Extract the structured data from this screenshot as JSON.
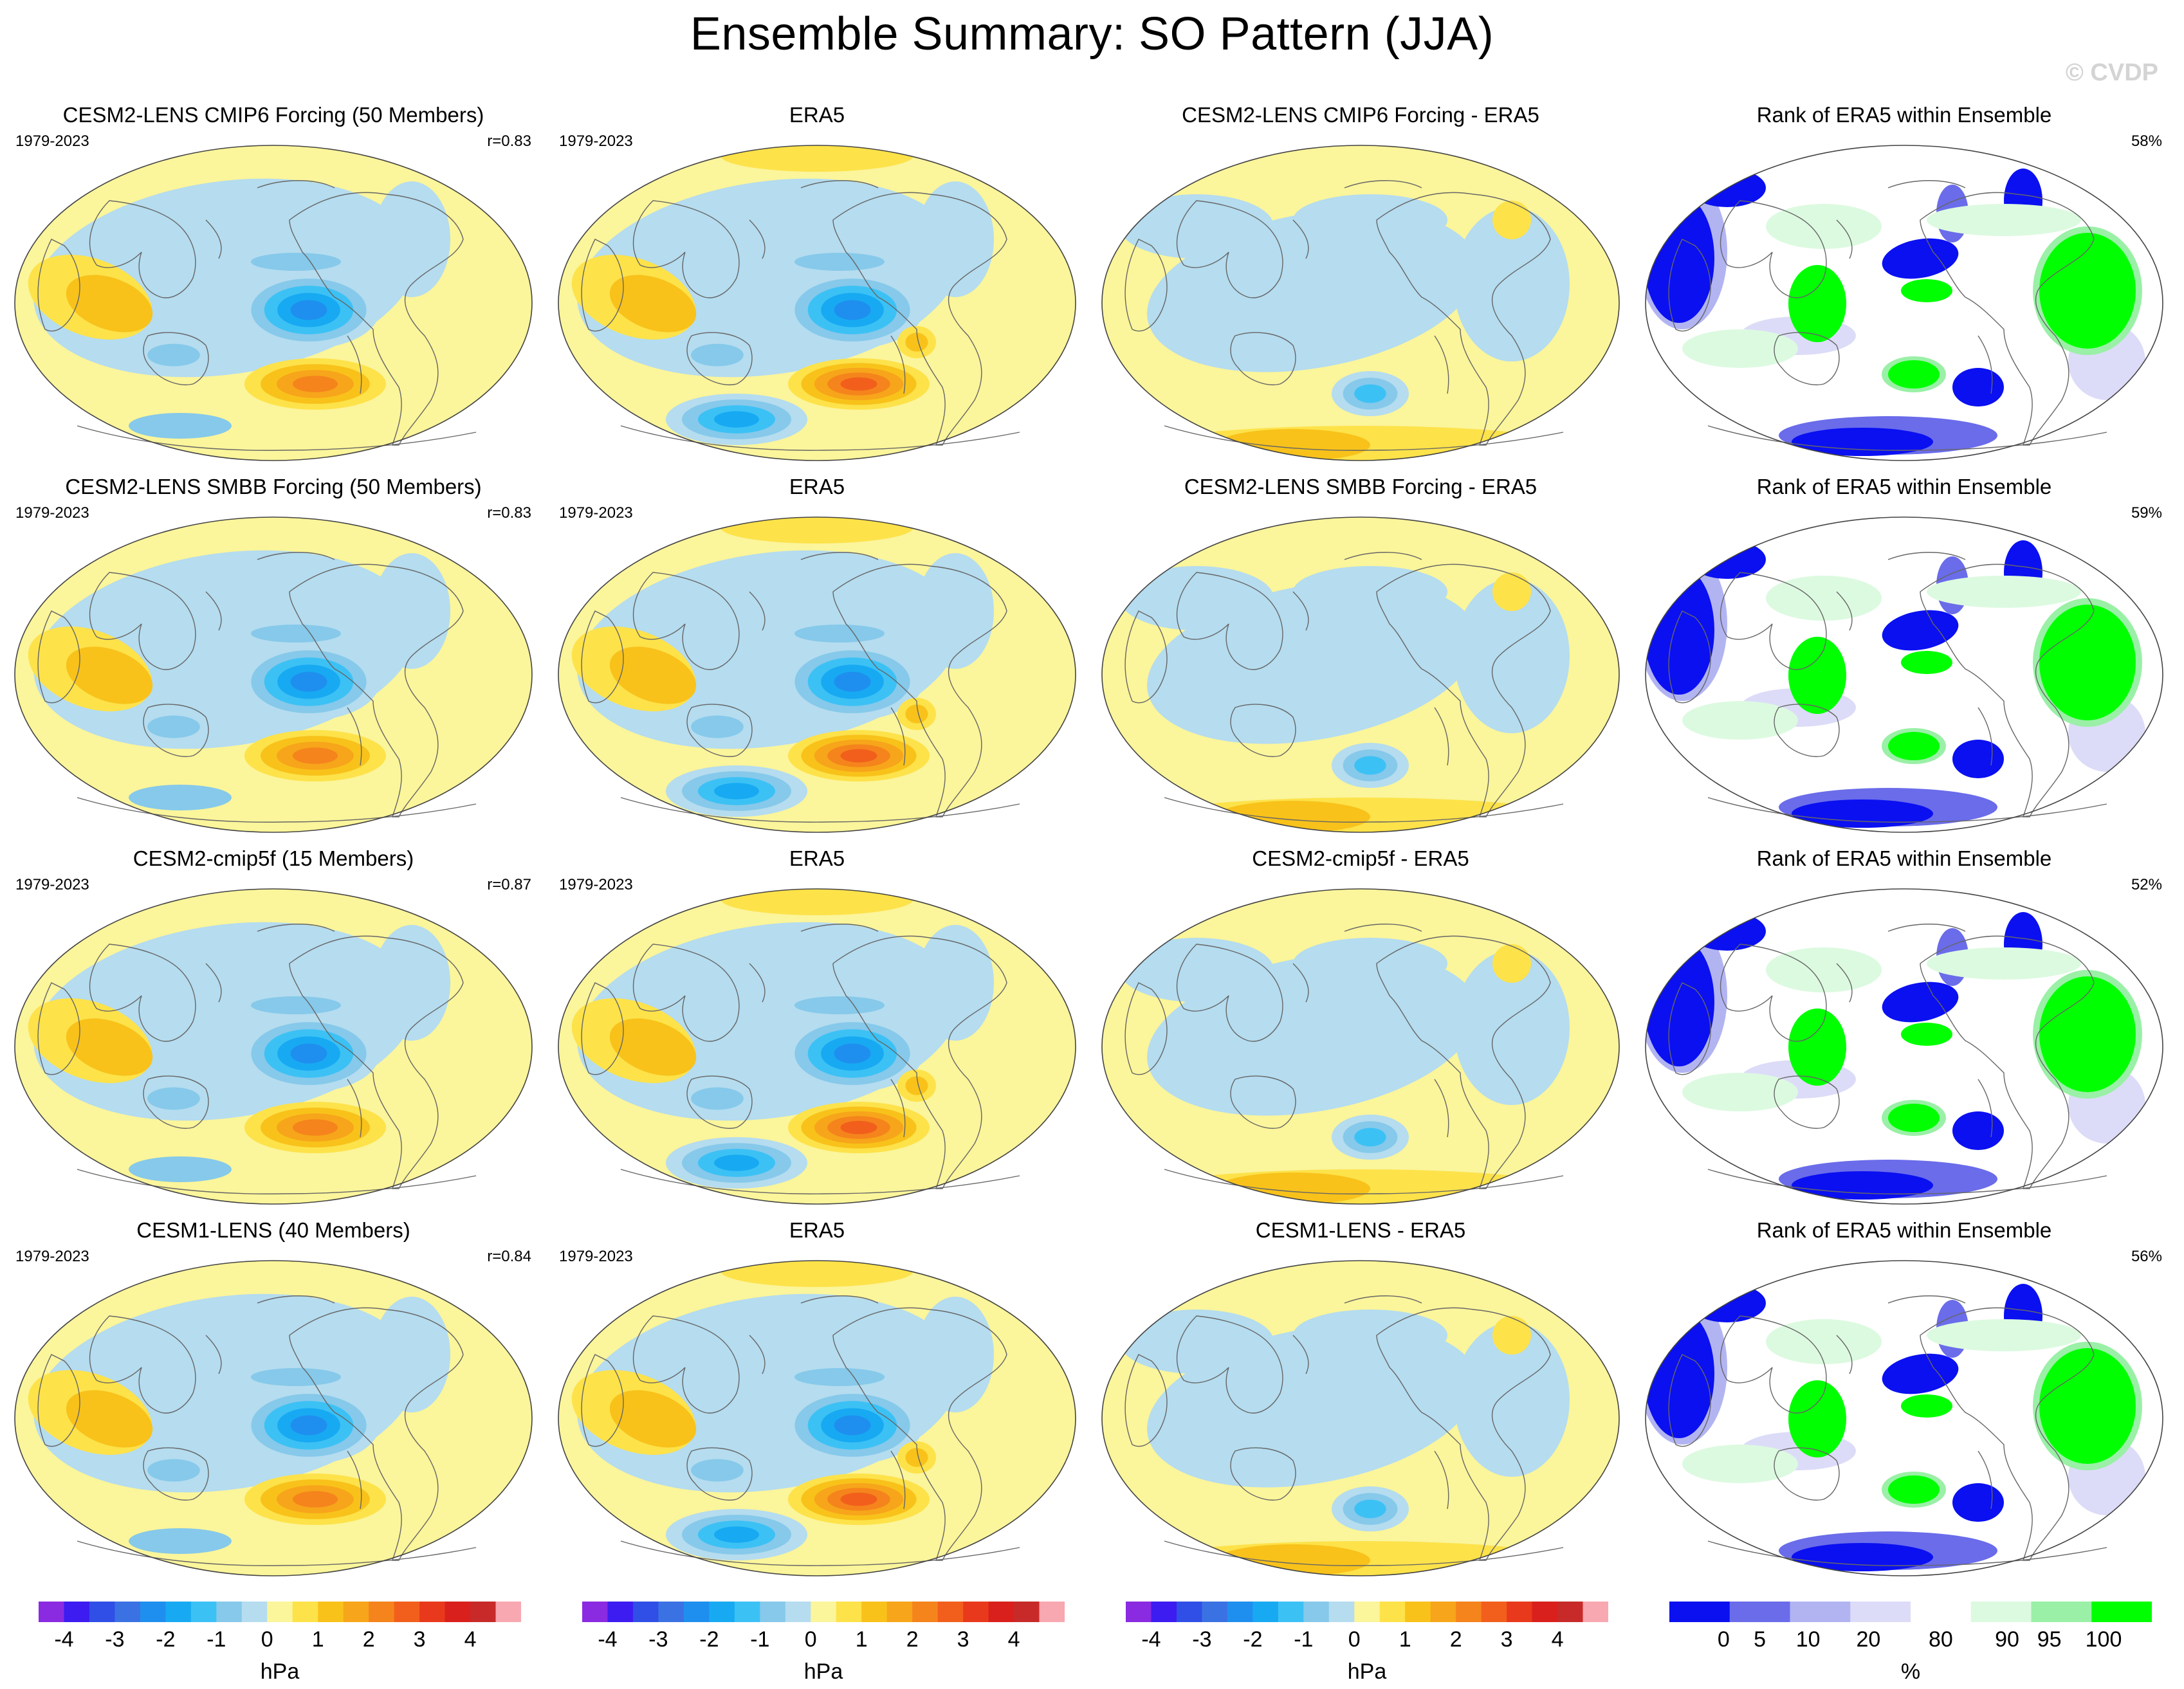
{
  "title": "Ensemble Summary: SO Pattern (JJA)",
  "watermark": "© CVDP",
  "rows": [
    {
      "ens": {
        "title": "CESM2-LENS CMIP6 Forcing (50 Members)",
        "years": "1979-2023",
        "corr": "r=0.83"
      },
      "obs": {
        "title": "ERA5",
        "years": "1979-2023"
      },
      "diff": {
        "title": "CESM2-LENS CMIP6 Forcing - ERA5"
      },
      "rank": {
        "title": "Rank of ERA5 within Ensemble",
        "pct": "58%"
      }
    },
    {
      "ens": {
        "title": "CESM2-LENS SMBB Forcing (50 Members)",
        "years": "1979-2023",
        "corr": "r=0.83"
      },
      "obs": {
        "title": "ERA5",
        "years": "1979-2023"
      },
      "diff": {
        "title": "CESM2-LENS SMBB Forcing - ERA5"
      },
      "rank": {
        "title": "Rank of ERA5 within Ensemble",
        "pct": "59%"
      }
    },
    {
      "ens": {
        "title": "CESM2-cmip5f (15 Members)",
        "years": "1979-2023",
        "corr": "r=0.87"
      },
      "obs": {
        "title": "ERA5",
        "years": "1979-2023"
      },
      "diff": {
        "title": "CESM2-cmip5f - ERA5"
      },
      "rank": {
        "title": "Rank of ERA5 within Ensemble",
        "pct": "52%"
      }
    },
    {
      "ens": {
        "title": "CESM1-LENS (40 Members)",
        "years": "1979-2023",
        "corr": "r=0.84"
      },
      "obs": {
        "title": "ERA5",
        "years": "1979-2023"
      },
      "diff": {
        "title": "CESM1-LENS - ERA5"
      },
      "rank": {
        "title": "Rank of ERA5 within Ensemble",
        "pct": "56%"
      }
    }
  ],
  "chart_data": {
    "type": "heatmap",
    "title": "Ensemble Summary: SO Pattern (JJA)",
    "projection": "global map (Robinson-like), Pacific-centered",
    "pattern_colorbar": {
      "unit": "hPa",
      "tick_labels": [
        "-4",
        "-3",
        "-2",
        "-1",
        "0",
        "1",
        "2",
        "3",
        "4"
      ],
      "levels": [
        -4.5,
        -4,
        -3.5,
        -3,
        -2.5,
        -2,
        -1.5,
        -1,
        -0.5,
        0,
        0.5,
        1,
        1.5,
        2,
        2.5,
        3,
        3.5,
        4,
        4.5
      ],
      "colors": [
        "#8a2be2",
        "#3c1cf0",
        "#2f4fe6",
        "#3b72e3",
        "#1f8fef",
        "#17aaf2",
        "#3cc1f5",
        "#86c9ea",
        "#b5dcef",
        "#fbf59b",
        "#fde24a",
        "#f8c21a",
        "#f7a51a",
        "#f5841c",
        "#f25f1c",
        "#e9391c",
        "#d9201c",
        "#c82a2a",
        "#f8a8b0"
      ]
    },
    "rank_colorbar": {
      "unit": "%",
      "tick_labels": [
        "0",
        "5",
        "10",
        "20",
        "80",
        "90",
        "95",
        "100"
      ],
      "levels": [
        0,
        5,
        10,
        20,
        80,
        90,
        95,
        100
      ],
      "colors": [
        "#0a10f0",
        "#6a6cea",
        "#b2b4f2",
        "#dcdcf8",
        "#ffffff",
        "#dcfae0",
        "#9af0a6",
        "#00ff00"
      ]
    }
  }
}
